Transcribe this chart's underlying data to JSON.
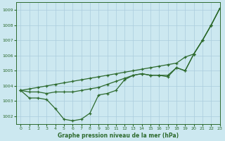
{
  "title": "Graphe pression niveau de la mer (hPa)",
  "bg_color": "#cce8f0",
  "grid_color": "#aaccdd",
  "line_color": "#2d6a2d",
  "xlim": [
    -0.5,
    23
  ],
  "ylim": [
    1001.5,
    1009.5
  ],
  "yticks": [
    1002,
    1003,
    1004,
    1005,
    1006,
    1007,
    1008,
    1009
  ],
  "xticks": [
    0,
    1,
    2,
    3,
    4,
    5,
    6,
    7,
    8,
    9,
    10,
    11,
    12,
    13,
    14,
    15,
    16,
    17,
    18,
    19,
    20,
    21,
    22,
    23
  ],
  "series1": {
    "x": [
      0,
      1,
      2,
      3,
      4,
      5,
      6,
      7,
      8,
      9,
      10,
      11,
      12,
      13,
      14,
      15,
      16,
      17,
      18,
      19,
      20,
      21,
      22,
      23
    ],
    "y": [
      1003.7,
      1003.8,
      1003.9,
      1004.0,
      1004.1,
      1004.2,
      1004.3,
      1004.4,
      1004.5,
      1004.6,
      1004.7,
      1004.8,
      1004.9,
      1005.0,
      1005.1,
      1005.2,
      1005.3,
      1005.4,
      1005.5,
      1005.9,
      1006.1,
      1007.0,
      1008.0,
      1009.1
    ]
  },
  "series2": {
    "x": [
      0,
      1,
      2,
      3,
      4,
      5,
      6,
      7,
      8,
      9,
      10,
      11,
      12,
      13,
      14,
      15,
      16,
      17,
      18,
      19,
      20,
      21,
      22,
      23
    ],
    "y": [
      1003.7,
      1003.6,
      1003.6,
      1003.5,
      1003.6,
      1003.6,
      1003.6,
      1003.7,
      1003.8,
      1003.9,
      1004.1,
      1004.3,
      1004.5,
      1004.7,
      1004.8,
      1004.7,
      1004.7,
      1004.7,
      1005.2,
      1005.0,
      1006.1,
      1007.0,
      1008.0,
      1009.1
    ]
  },
  "series3": {
    "x": [
      0,
      1,
      2,
      3,
      4,
      5,
      6,
      7,
      8,
      9,
      10,
      11,
      12,
      13,
      14,
      15,
      16,
      17,
      18,
      19,
      20,
      21,
      22,
      23
    ],
    "y": [
      1003.7,
      1003.2,
      1003.2,
      1003.1,
      1002.5,
      1001.8,
      1001.7,
      1001.8,
      1002.2,
      1003.4,
      1003.5,
      1003.7,
      1004.4,
      1004.7,
      1004.8,
      1004.7,
      1004.7,
      1004.6,
      1005.2,
      1005.0,
      1006.1,
      1007.0,
      1008.0,
      1009.1
    ]
  }
}
